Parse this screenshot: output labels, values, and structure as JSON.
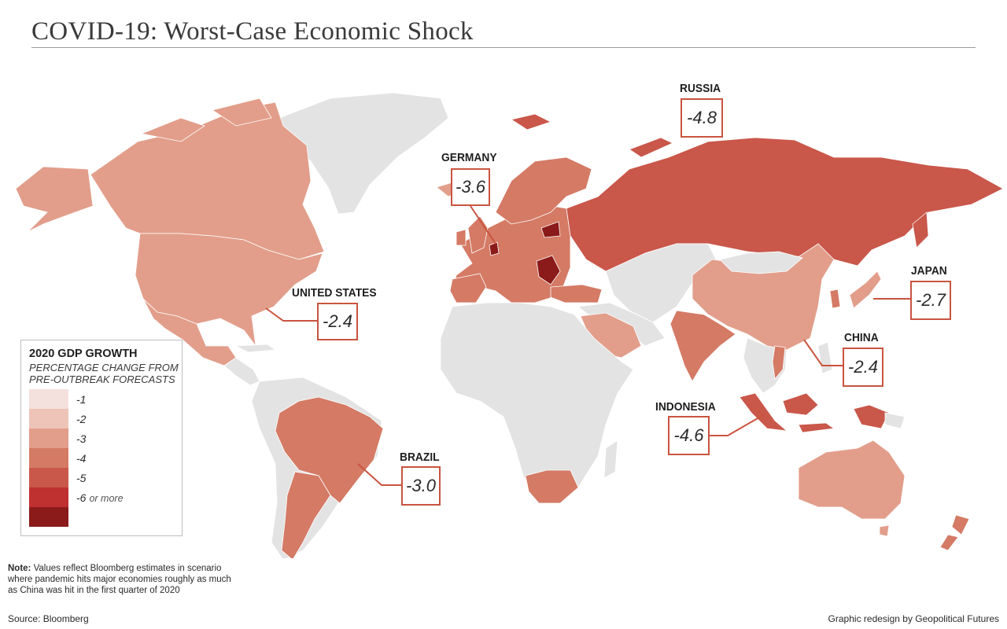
{
  "title": "COVID-19: Worst-Case Economic Shock",
  "colors": {
    "no_data": "#e3e3e3",
    "scale": [
      "#f4e0dc",
      "#eec4b8",
      "#e29e8b",
      "#d47a65",
      "#c9574a",
      "#bf3030",
      "#8b1a1a"
    ],
    "accent": "#c9543f"
  },
  "legend": {
    "title": "2020 GDP GROWTH",
    "subtitle_line1": "PERCENTAGE CHANGE FROM",
    "subtitle_line2": "PRE-OUTBREAK FORECASTS",
    "items": [
      {
        "label": "-1",
        "suffix": ""
      },
      {
        "label": "-2",
        "suffix": ""
      },
      {
        "label": "-3",
        "suffix": ""
      },
      {
        "label": "-4",
        "suffix": ""
      },
      {
        "label": "-5",
        "suffix": ""
      },
      {
        "label": "-6",
        "suffix": "or more"
      }
    ]
  },
  "callouts": [
    {
      "country": "RUSSIA",
      "value": "-4.8"
    },
    {
      "country": "GERMANY",
      "value": "-3.6"
    },
    {
      "country": "UNITED STATES",
      "value": "-2.4"
    },
    {
      "country": "JAPAN",
      "value": "-2.7"
    },
    {
      "country": "CHINA",
      "value": "-2.4"
    },
    {
      "country": "INDONESIA",
      "value": "-4.6"
    },
    {
      "country": "BRAZIL",
      "value": "-3.0"
    }
  ],
  "note": {
    "label": "Note:",
    "line1": "Values reflect Bloomberg estimates in scenario",
    "line2": "where pandemic hits major economies roughly as much",
    "line3": "as China was hit in the first quarter of 2020"
  },
  "source": "Source: Bloomberg",
  "credit": "Graphic redesign by Geopolitical Futures"
}
